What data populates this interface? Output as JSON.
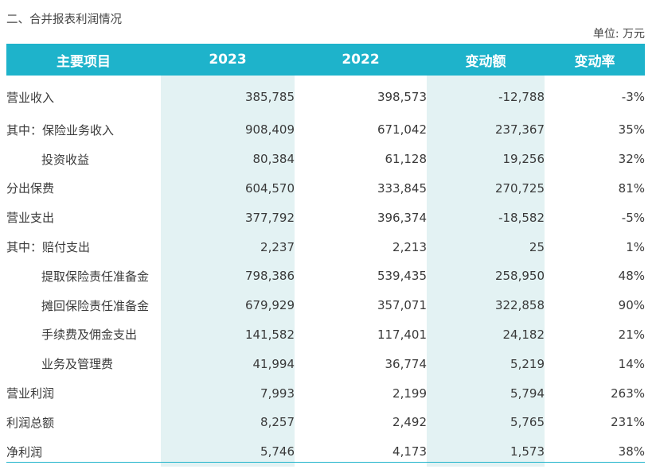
{
  "title": "二、合并报表利润情况",
  "unit": "单位: 万元",
  "columns": [
    "主要项目",
    "2023",
    "2022",
    "变动额",
    "变动率"
  ],
  "rows": [
    {
      "label": "营业收入",
      "sub": false,
      "y2023": "385,785",
      "y2022": "398,573",
      "change": "-12,788",
      "rate": "-3%"
    },
    {
      "label": "其中：保险业务收入",
      "sub": false,
      "y2023": "908,409",
      "y2022": "671,042",
      "change": "237,367",
      "rate": "35%"
    },
    {
      "label": "投资收益",
      "sub": true,
      "y2023": "80,384",
      "y2022": "61,128",
      "change": "19,256",
      "rate": "32%"
    },
    {
      "label": "分出保费",
      "sub": false,
      "y2023": "604,570",
      "y2022": "333,845",
      "change": "270,725",
      "rate": "81%"
    },
    {
      "label": "营业支出",
      "sub": false,
      "y2023": "377,792",
      "y2022": "396,374",
      "change": "-18,582",
      "rate": "-5%"
    },
    {
      "label": "其中：赔付支出",
      "sub": false,
      "y2023": "2,237",
      "y2022": "2,213",
      "change": "25",
      "rate": "1%"
    },
    {
      "label": "提取保险责任准备金",
      "sub": true,
      "y2023": "798,386",
      "y2022": "539,435",
      "change": "258,950",
      "rate": "48%"
    },
    {
      "label": "摊回保险责任准备金",
      "sub": true,
      "y2023": "679,929",
      "y2022": "357,071",
      "change": "322,858",
      "rate": "90%"
    },
    {
      "label": "手续费及佣金支出",
      "sub": true,
      "y2023": "141,582",
      "y2022": "117,401",
      "change": "24,182",
      "rate": "21%"
    },
    {
      "label": "业务及管理费",
      "sub": true,
      "y2023": "41,994",
      "y2022": "36,774",
      "change": "5,219",
      "rate": "14%"
    },
    {
      "label": "营业利润",
      "sub": false,
      "y2023": "7,993",
      "y2022": "2,199",
      "change": "5,794",
      "rate": "263%"
    },
    {
      "label": "利润总额",
      "sub": false,
      "y2023": "8,257",
      "y2022": "2,492",
      "change": "5,765",
      "rate": "231%"
    },
    {
      "label": "净利润",
      "sub": false,
      "y2023": "5,746",
      "y2022": "4,173",
      "change": "1,573",
      "rate": "38%"
    }
  ],
  "colors": {
    "header": "#1eb3cb",
    "band": "#e3f2f3"
  }
}
